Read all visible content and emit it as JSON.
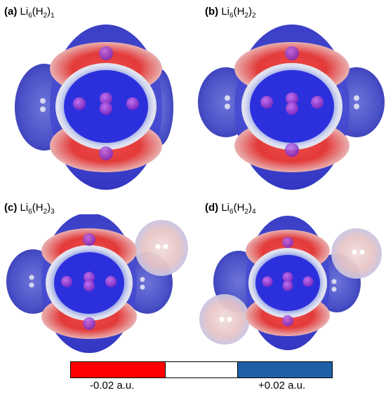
{
  "panels": [
    {
      "tag": "(a)",
      "formula_base": "Li",
      "li_sub": "6",
      "h_base": "(H",
      "h_sub": "2",
      "close": ")",
      "n_sub": "1",
      "n_h2": 1
    },
    {
      "tag": "(b)",
      "formula_base": "Li",
      "li_sub": "6",
      "h_base": "(H",
      "h_sub": "2",
      "close": ")",
      "n_sub": "2",
      "n_h2": 2
    },
    {
      "tag": "(c)",
      "formula_base": "Li",
      "li_sub": "6",
      "h_base": "(H",
      "h_sub": "2",
      "close": ")",
      "n_sub": "3",
      "n_h2": 3
    },
    {
      "tag": "(d)",
      "formula_base": "Li",
      "li_sub": "6",
      "h_base": "(H",
      "h_sub": "2",
      "close": ")",
      "n_sub": "4",
      "n_h2": 4
    }
  ],
  "colorbar": {
    "min_label": "-0.02 a.u.",
    "max_label": "+0.02 a.u.",
    "colors": {
      "negative": "#ff0000",
      "zero": "#ffffff",
      "positive": "#1f5fa8"
    }
  },
  "colors": {
    "blue_surface": "#3a3fd0",
    "red_band": "#e83c3c",
    "atom": "#9b3fd6"
  }
}
